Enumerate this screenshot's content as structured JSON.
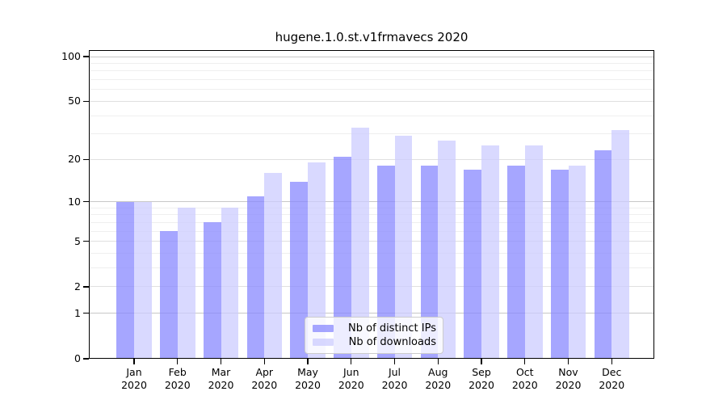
{
  "chart_data": {
    "type": "bar",
    "title": "hugene.1.0.st.v1frmavecs 2020",
    "year": "2020",
    "categories": [
      "Jan",
      "Feb",
      "Mar",
      "Apr",
      "May",
      "Jun",
      "Jul",
      "Aug",
      "Sep",
      "Oct",
      "Nov",
      "Dec"
    ],
    "series": [
      {
        "name": "Nb of distinct IPs",
        "color": "#8888ff",
        "alpha": 0.75,
        "values": [
          10,
          6,
          7,
          11,
          14,
          21,
          18,
          18,
          17,
          18,
          17,
          23
        ]
      },
      {
        "name": "Nb of downloads",
        "color": "#ccccff",
        "alpha": 0.75,
        "values": [
          10,
          9,
          9,
          16,
          19,
          33,
          29,
          27,
          25,
          25,
          18,
          32
        ]
      }
    ],
    "yscale": "log1p",
    "ylim": [
      0,
      110
    ],
    "yticks": [
      0,
      1,
      2,
      5,
      10,
      20,
      50,
      100
    ],
    "decade_gridlines": [
      1,
      10,
      100
    ],
    "intermediate_gridlines": [
      2,
      5,
      20,
      50
    ],
    "minor_gridlines": [
      3,
      4,
      6,
      7,
      8,
      9,
      30,
      40,
      60,
      70,
      80,
      90
    ],
    "grid": true,
    "legend_position": "inside-bottom-center",
    "colors": {
      "decade_gridline": "#c8c8c8",
      "intermediate_gridline": "#e0e0e0",
      "minor_gridline": "#efefef",
      "axis": "#000000",
      "background": "#ffffff"
    }
  }
}
